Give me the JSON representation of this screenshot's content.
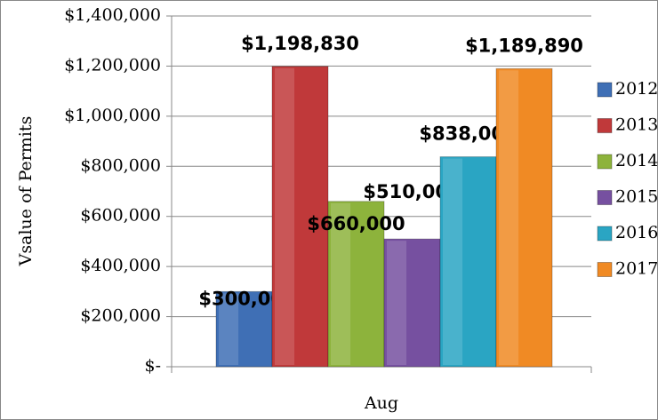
{
  "chart_data": {
    "type": "bar",
    "y_label": "Vsalue of Permits",
    "categories": [
      "Aug"
    ],
    "series": [
      {
        "name": "2012",
        "color": "#3f6fb5",
        "values": [
          300000
        ],
        "value_labels": [
          "$300,000"
        ]
      },
      {
        "name": "2013",
        "color": "#c0393a",
        "values": [
          1198830
        ],
        "value_labels": [
          "$1,198,830"
        ]
      },
      {
        "name": "2014",
        "color": "#8db33c",
        "values": [
          660000
        ],
        "value_labels": [
          "$660,000"
        ]
      },
      {
        "name": "2015",
        "color": "#7650a0",
        "values": [
          510000
        ],
        "value_labels": [
          "$510,000"
        ]
      },
      {
        "name": "2016",
        "color": "#2aa5c3",
        "values": [
          838000
        ],
        "value_labels": [
          "$838,000"
        ]
      },
      {
        "name": "2017",
        "color": "#f08a24",
        "values": [
          1189890
        ],
        "value_labels": [
          "$1,189,890"
        ]
      }
    ],
    "ylim": [
      0,
      1400000
    ],
    "yticks": [
      {
        "value": 0,
        "label": "$-"
      },
      {
        "value": 200000,
        "label": "$200,000"
      },
      {
        "value": 400000,
        "label": "$400,000"
      },
      {
        "value": 600000,
        "label": "$600,000"
      },
      {
        "value": 800000,
        "label": "$800,000"
      },
      {
        "value": 1000000,
        "label": "$1,000,000"
      },
      {
        "value": 1200000,
        "label": "$1,200,000"
      },
      {
        "value": 1400000,
        "label": "$1,400,000"
      }
    ],
    "grid": true,
    "legend": "right"
  }
}
